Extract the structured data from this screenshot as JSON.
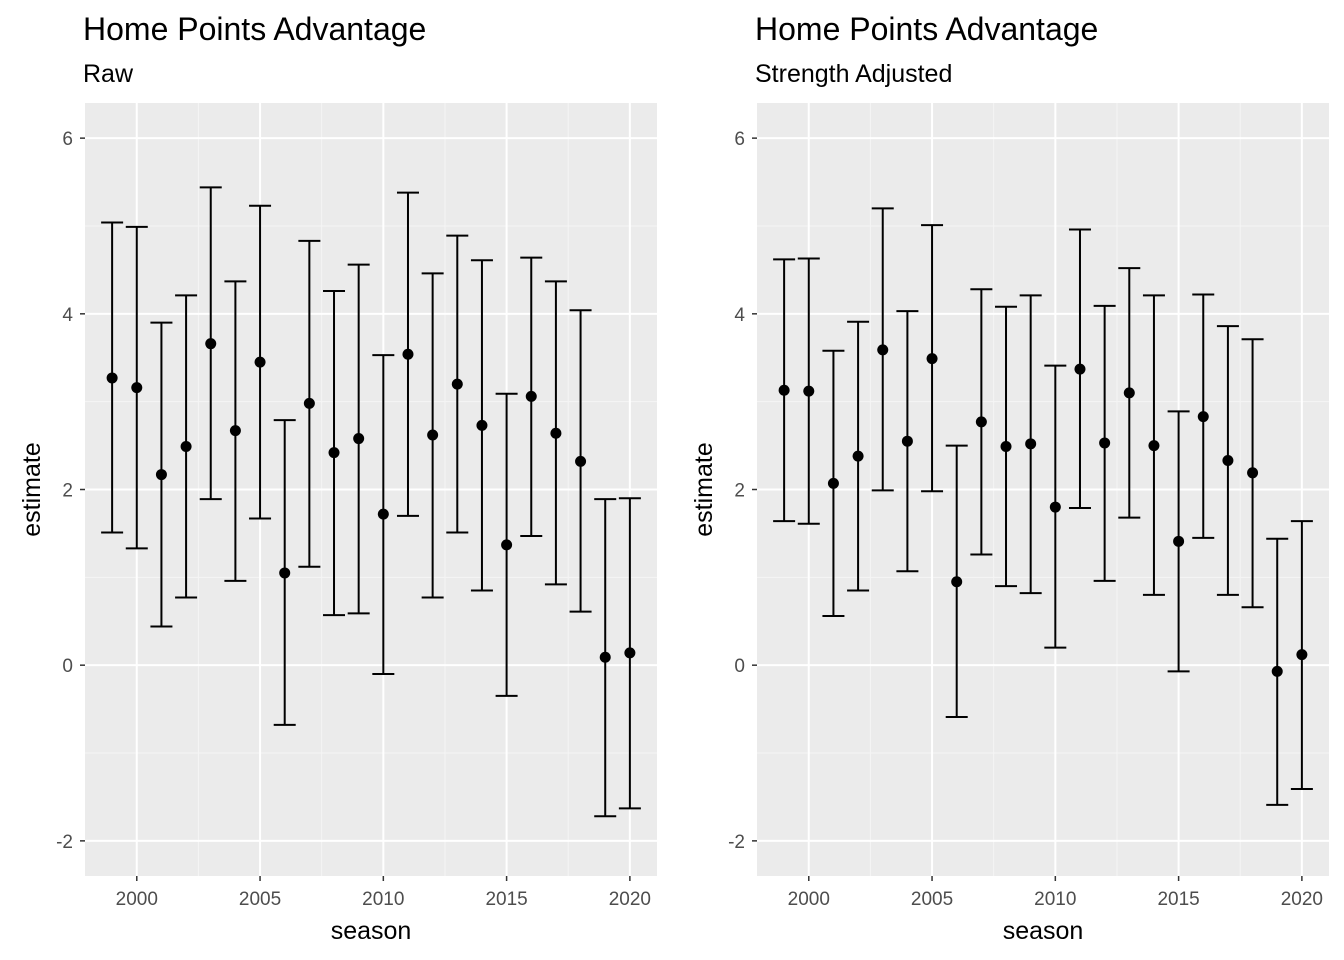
{
  "chart_data": [
    {
      "type": "errorbar",
      "title": "Home Points Advantage",
      "subtitle": "Raw",
      "xlabel": "season",
      "ylabel": "estimate",
      "xlim": [
        1997.9,
        2021.1
      ],
      "ylim": [
        -2.4,
        6.4
      ],
      "xticks": [
        2000,
        2005,
        2010,
        2015,
        2020
      ],
      "yticks": [
        -2,
        0,
        2,
        4,
        6
      ],
      "grid": true,
      "legend": "none",
      "x": [
        1999,
        2000,
        2001,
        2002,
        2003,
        2004,
        2005,
        2006,
        2007,
        2008,
        2009,
        2010,
        2011,
        2012,
        2013,
        2014,
        2015,
        2016,
        2017,
        2018,
        2019,
        2020
      ],
      "estimate": [
        3.27,
        3.16,
        2.17,
        2.49,
        3.66,
        2.67,
        3.45,
        1.05,
        2.98,
        2.42,
        2.58,
        1.72,
        3.54,
        2.62,
        3.2,
        2.73,
        1.37,
        3.06,
        2.64,
        2.32,
        0.09,
        0.14
      ],
      "lower": [
        1.51,
        1.33,
        0.44,
        0.77,
        1.89,
        0.96,
        1.67,
        -0.68,
        1.12,
        0.57,
        0.59,
        -0.1,
        1.7,
        0.77,
        1.51,
        0.85,
        -0.35,
        1.47,
        0.92,
        0.61,
        -1.72,
        -1.63
      ],
      "upper": [
        5.04,
        4.99,
        3.9,
        4.21,
        5.44,
        4.37,
        5.23,
        2.79,
        4.83,
        4.26,
        4.56,
        3.53,
        5.38,
        4.46,
        4.89,
        4.61,
        3.09,
        4.64,
        4.37,
        4.04,
        1.89,
        1.9
      ]
    },
    {
      "type": "errorbar",
      "title": "Home Points Advantage",
      "subtitle": "Strength Adjusted",
      "xlabel": "season",
      "ylabel": "estimate",
      "xlim": [
        1997.9,
        2021.1
      ],
      "ylim": [
        -2.4,
        6.4
      ],
      "xticks": [
        2000,
        2005,
        2010,
        2015,
        2020
      ],
      "yticks": [
        -2,
        0,
        2,
        4,
        6
      ],
      "grid": true,
      "legend": "none",
      "x": [
        1999,
        2000,
        2001,
        2002,
        2003,
        2004,
        2005,
        2006,
        2007,
        2008,
        2009,
        2010,
        2011,
        2012,
        2013,
        2014,
        2015,
        2016,
        2017,
        2018,
        2019,
        2020
      ],
      "estimate": [
        3.13,
        3.12,
        2.07,
        2.38,
        3.59,
        2.55,
        3.49,
        0.95,
        2.77,
        2.49,
        2.52,
        1.8,
        3.37,
        2.53,
        3.1,
        2.5,
        1.41,
        2.83,
        2.33,
        2.19,
        -0.07,
        0.12
      ],
      "lower": [
        1.64,
        1.61,
        0.56,
        0.85,
        1.99,
        1.07,
        1.98,
        -0.59,
        1.26,
        0.9,
        0.82,
        0.2,
        1.79,
        0.96,
        1.68,
        0.8,
        -0.07,
        1.45,
        0.8,
        0.66,
        -1.59,
        -1.41
      ],
      "upper": [
        4.62,
        4.63,
        3.58,
        3.91,
        5.2,
        4.03,
        5.01,
        2.5,
        4.28,
        4.08,
        4.21,
        3.41,
        4.96,
        4.09,
        4.52,
        4.21,
        2.89,
        4.22,
        3.86,
        3.71,
        1.44,
        1.64
      ]
    }
  ],
  "colors": {
    "panel_background": "#ebebeb",
    "grid_major": "#ffffff",
    "grid_minor": "#f5f5f5",
    "marks": "#000000",
    "tick_text": "#4d4d4d"
  }
}
